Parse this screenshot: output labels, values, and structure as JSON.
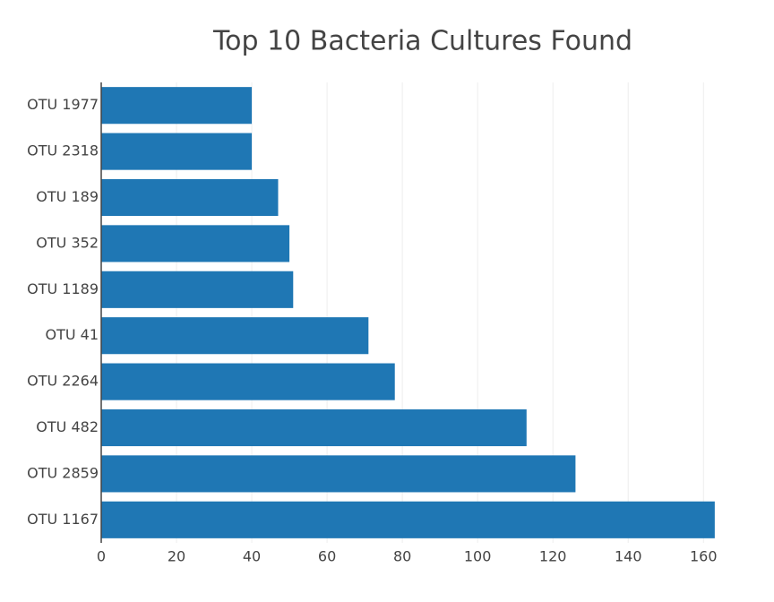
{
  "chart_data": {
    "type": "barh",
    "title": "Top 10 Bacteria Cultures Found",
    "categories": [
      "OTU 1977",
      "OTU 2318",
      "OTU 189",
      "OTU 352",
      "OTU 1189",
      "OTU 41",
      "OTU 2264",
      "OTU 482",
      "OTU 2859",
      "OTU 1167"
    ],
    "values": [
      40,
      40,
      47,
      50,
      51,
      71,
      78,
      113,
      126,
      163
    ],
    "color": "#1f77b4",
    "xlim": [
      0,
      171.6
    ],
    "xticks": [
      0,
      20,
      40,
      60,
      80,
      100,
      120,
      140,
      160
    ],
    "grid": true
  }
}
